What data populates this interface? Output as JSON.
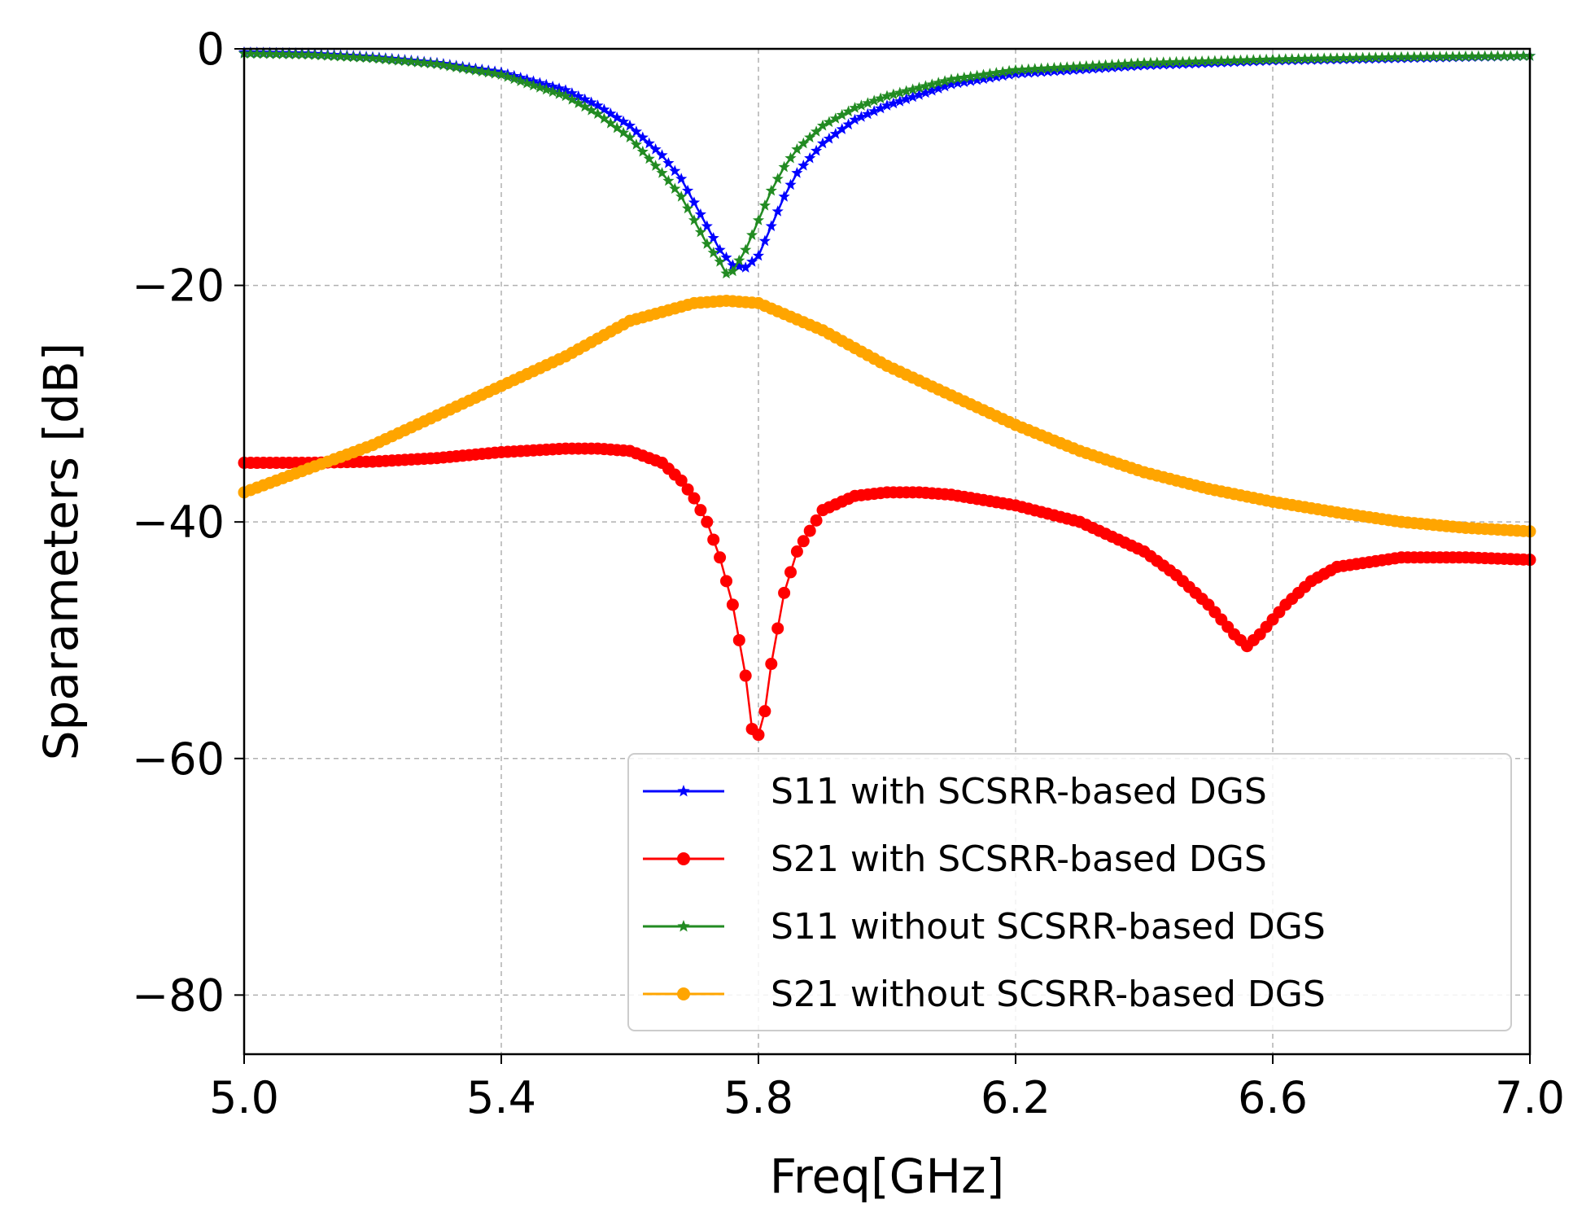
{
  "chart_data": {
    "type": "line",
    "title": "",
    "xlabel": "Freq[GHz]",
    "ylabel": "Sparameters [dB]",
    "xlim": [
      5.0,
      7.0
    ],
    "ylim": [
      -85,
      0
    ],
    "grid": true,
    "legend_position": "bottom-right",
    "x_ticks": [
      5.0,
      5.4,
      5.8,
      6.2,
      6.6,
      7.0
    ],
    "x_tick_labels": [
      "5.0",
      "5.4",
      "5.8",
      "6.2",
      "6.6",
      "7.0"
    ],
    "y_ticks": [
      0,
      -20,
      -40,
      -60,
      -80
    ],
    "y_tick_labels": [
      "0",
      "−20",
      "−40",
      "−60",
      "−80"
    ],
    "series": [
      {
        "name": "S11 with SCSRR-based DGS",
        "color": "#0000ff",
        "marker": "star",
        "x": [
          5.0,
          5.1,
          5.2,
          5.3,
          5.4,
          5.5,
          5.55,
          5.6,
          5.65,
          5.68,
          5.7,
          5.72,
          5.74,
          5.76,
          5.78,
          5.8,
          5.82,
          5.84,
          5.86,
          5.9,
          5.95,
          6.0,
          6.1,
          6.2,
          6.4,
          6.6,
          6.8,
          7.0
        ],
        "y": [
          -0.3,
          -0.4,
          -0.7,
          -1.2,
          -2.0,
          -3.5,
          -4.8,
          -6.5,
          -9.0,
          -11.0,
          -13.0,
          -15.0,
          -17.0,
          -18.3,
          -18.5,
          -17.5,
          -15.0,
          -12.5,
          -10.5,
          -8.0,
          -6.0,
          -4.8,
          -3.0,
          -2.1,
          -1.4,
          -1.0,
          -0.8,
          -0.6
        ]
      },
      {
        "name": "S21 with SCSRR-based DGS",
        "color": "#ff0000",
        "marker": "circle",
        "x": [
          5.0,
          5.1,
          5.2,
          5.3,
          5.4,
          5.5,
          5.55,
          5.6,
          5.65,
          5.68,
          5.7,
          5.72,
          5.74,
          5.76,
          5.78,
          5.79,
          5.8,
          5.81,
          5.82,
          5.84,
          5.86,
          5.9,
          5.95,
          6.0,
          6.05,
          6.1,
          6.2,
          6.3,
          6.4,
          6.45,
          6.5,
          6.54,
          6.56,
          6.58,
          6.62,
          6.66,
          6.7,
          6.8,
          6.9,
          7.0
        ],
        "y": [
          -35.0,
          -35.0,
          -34.9,
          -34.6,
          -34.1,
          -33.8,
          -33.8,
          -34.0,
          -35.0,
          -36.5,
          -38.0,
          -40.0,
          -43.0,
          -47.0,
          -53.0,
          -57.5,
          -58.0,
          -56.0,
          -52.0,
          -46.0,
          -42.5,
          -39.0,
          -37.8,
          -37.5,
          -37.5,
          -37.7,
          -38.6,
          -40.0,
          -42.5,
          -44.5,
          -47.0,
          -49.5,
          -50.5,
          -49.5,
          -47.0,
          -45.0,
          -43.8,
          -43.0,
          -43.0,
          -43.2
        ]
      },
      {
        "name": "S11 without SCSRR-based DGS",
        "color": "#228b22",
        "marker": "star",
        "x": [
          5.0,
          5.1,
          5.2,
          5.3,
          5.4,
          5.5,
          5.55,
          5.6,
          5.65,
          5.68,
          5.7,
          5.72,
          5.74,
          5.75,
          5.76,
          5.78,
          5.8,
          5.82,
          5.84,
          5.86,
          5.9,
          5.95,
          6.0,
          6.1,
          6.2,
          6.4,
          6.6,
          6.8,
          7.0
        ],
        "y": [
          -0.4,
          -0.5,
          -0.8,
          -1.3,
          -2.2,
          -4.0,
          -5.5,
          -7.5,
          -10.5,
          -12.5,
          -14.5,
          -16.5,
          -18.0,
          -19.0,
          -18.8,
          -17.0,
          -14.5,
          -12.0,
          -10.0,
          -8.5,
          -6.5,
          -5.0,
          -4.0,
          -2.6,
          -1.8,
          -1.2,
          -0.9,
          -0.7,
          -0.6
        ]
      },
      {
        "name": "S21 without SCSRR-based DGS",
        "color": "#ffa500",
        "marker": "circle",
        "x": [
          5.0,
          5.1,
          5.2,
          5.3,
          5.4,
          5.5,
          5.6,
          5.7,
          5.75,
          5.8,
          5.9,
          6.0,
          6.1,
          6.2,
          6.3,
          6.4,
          6.5,
          6.6,
          6.7,
          6.8,
          6.9,
          7.0
        ],
        "y": [
          -37.5,
          -35.5,
          -33.5,
          -31.0,
          -28.5,
          -26.0,
          -23.0,
          -21.5,
          -21.3,
          -21.5,
          -23.8,
          -26.8,
          -29.3,
          -31.8,
          -34.0,
          -35.8,
          -37.2,
          -38.3,
          -39.2,
          -40.0,
          -40.5,
          -40.8
        ]
      }
    ]
  }
}
